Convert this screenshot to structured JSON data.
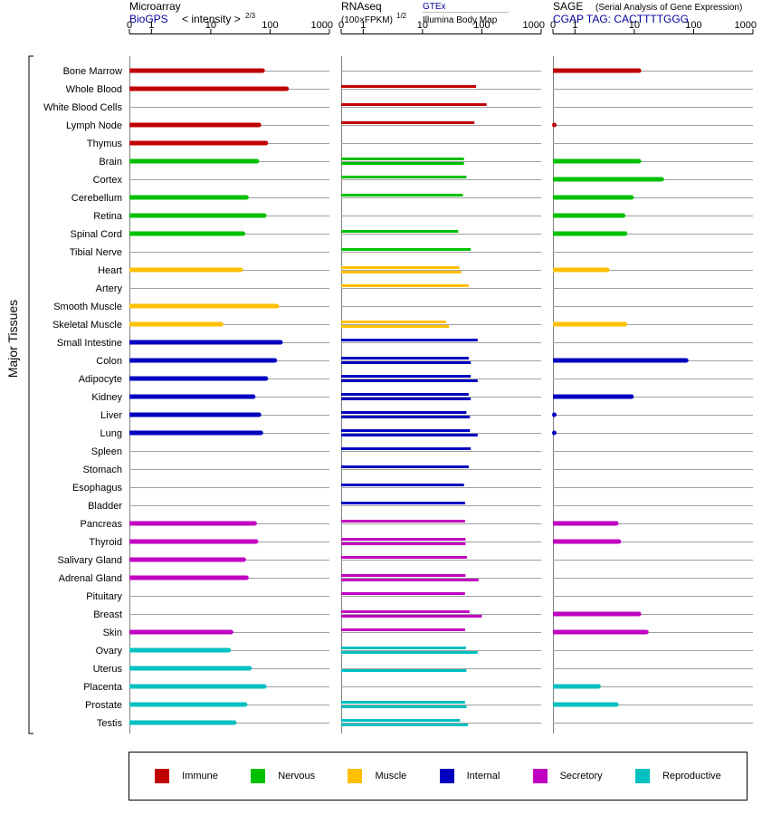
{
  "chart_data": {
    "type": "bar",
    "y_axis_label": "Major Tissues",
    "tissues": [
      {
        "name": "Bone Marrow",
        "group": "Immune"
      },
      {
        "name": "Whole Blood",
        "group": "Immune"
      },
      {
        "name": "White Blood Cells",
        "group": "Immune"
      },
      {
        "name": "Lymph Node",
        "group": "Immune"
      },
      {
        "name": "Thymus",
        "group": "Immune"
      },
      {
        "name": "Brain",
        "group": "Nervous"
      },
      {
        "name": "Cortex",
        "group": "Nervous"
      },
      {
        "name": "Cerebellum",
        "group": "Nervous"
      },
      {
        "name": "Retina",
        "group": "Nervous"
      },
      {
        "name": "Spinal Cord",
        "group": "Nervous"
      },
      {
        "name": "Tibial Nerve",
        "group": "Nervous"
      },
      {
        "name": "Heart",
        "group": "Muscle"
      },
      {
        "name": "Artery",
        "group": "Muscle"
      },
      {
        "name": "Smooth Muscle",
        "group": "Muscle"
      },
      {
        "name": "Skeletal Muscle",
        "group": "Muscle"
      },
      {
        "name": "Small Intestine",
        "group": "Internal"
      },
      {
        "name": "Colon",
        "group": "Internal"
      },
      {
        "name": "Adipocyte",
        "group": "Internal"
      },
      {
        "name": "Kidney",
        "group": "Internal"
      },
      {
        "name": "Liver",
        "group": "Internal"
      },
      {
        "name": "Lung",
        "group": "Internal"
      },
      {
        "name": "Spleen",
        "group": "Internal"
      },
      {
        "name": "Stomach",
        "group": "Internal"
      },
      {
        "name": "Esophagus",
        "group": "Internal"
      },
      {
        "name": "Bladder",
        "group": "Internal"
      },
      {
        "name": "Pancreas",
        "group": "Secretory"
      },
      {
        "name": "Thyroid",
        "group": "Secretory"
      },
      {
        "name": "Salivary Gland",
        "group": "Secretory"
      },
      {
        "name": "Adrenal Gland",
        "group": "Secretory"
      },
      {
        "name": "Pituitary",
        "group": "Secretory"
      },
      {
        "name": "Breast",
        "group": "Secretory"
      },
      {
        "name": "Skin",
        "group": "Secretory"
      },
      {
        "name": "Ovary",
        "group": "Reproductive"
      },
      {
        "name": "Uterus",
        "group": "Reproductive"
      },
      {
        "name": "Placenta",
        "group": "Reproductive"
      },
      {
        "name": "Prostate",
        "group": "Reproductive"
      },
      {
        "name": "Testis",
        "group": "Reproductive"
      }
    ],
    "groups": [
      {
        "name": "Immune",
        "color": "#c00000"
      },
      {
        "name": "Nervous",
        "color": "#00c000"
      },
      {
        "name": "Muscle",
        "color": "#ffc000"
      },
      {
        "name": "Internal",
        "color": "#0000c0"
      },
      {
        "name": "Secretory",
        "color": "#c000c0"
      },
      {
        "name": "Reproductive",
        "color": "#00c0c0"
      }
    ],
    "tick_labels": [
      "0",
      "1",
      "10",
      "100",
      "1000"
    ],
    "panels": [
      {
        "key": "microarray",
        "title": "Microarray",
        "subtitle_link": "BioGPS",
        "subtitle": "< intensity >",
        "exponent": "2/3",
        "values": [
          75,
          190,
          null,
          65,
          85,
          60,
          null,
          40,
          80,
          35,
          null,
          32,
          null,
          130,
          15,
          150,
          120,
          85,
          52,
          65,
          70,
          null,
          null,
          null,
          null,
          55,
          58,
          36,
          40,
          null,
          null,
          22,
          20,
          45,
          80,
          38,
          25
        ]
      },
      {
        "key": "rnaseq",
        "title": "RNAseq",
        "subtitle": "(100×FPKM)",
        "exponent": "1/2",
        "link1": "GTEx",
        "link2": "Illumina Body Map",
        "gtex": [
          null,
          80,
          120,
          75,
          null,
          50,
          55,
          48,
          null,
          40,
          65,
          42,
          60,
          null,
          25,
          85,
          60,
          65,
          60,
          55,
          63,
          65,
          60,
          50,
          52,
          52,
          53,
          56,
          53,
          52,
          62,
          52,
          54,
          null,
          null,
          52,
          43
        ],
        "bodymap": [
          null,
          null,
          null,
          null,
          null,
          50,
          null,
          null,
          null,
          null,
          null,
          45,
          null,
          null,
          28,
          null,
          65,
          85,
          65,
          63,
          85,
          null,
          null,
          null,
          null,
          null,
          53,
          null,
          88,
          null,
          100,
          null,
          85,
          55,
          null,
          55,
          58
        ]
      },
      {
        "key": "sage",
        "title": "SAGE",
        "note": "(Serial Analysis of Gene Expression)",
        "tag": "CGAP TAG: CACTTTTGGG",
        "values": [
          12,
          null,
          null,
          0.03,
          null,
          12,
          29,
          9,
          6.5,
          7,
          null,
          3.5,
          null,
          null,
          7,
          null,
          75,
          null,
          9,
          0.05,
          0.05,
          null,
          null,
          null,
          null,
          5,
          5.5,
          null,
          null,
          null,
          12,
          16,
          null,
          null,
          2.5,
          5,
          null
        ]
      }
    ]
  },
  "legend": {
    "items": [
      {
        "label": "Immune",
        "color": "#c00000"
      },
      {
        "label": "Nervous",
        "color": "#00c000"
      },
      {
        "label": "Muscle",
        "color": "#ffc000"
      },
      {
        "label": "Internal",
        "color": "#0000c0"
      },
      {
        "label": "Secretory",
        "color": "#c000c0"
      },
      {
        "label": "Reproductive",
        "color": "#00c0c0"
      }
    ]
  }
}
